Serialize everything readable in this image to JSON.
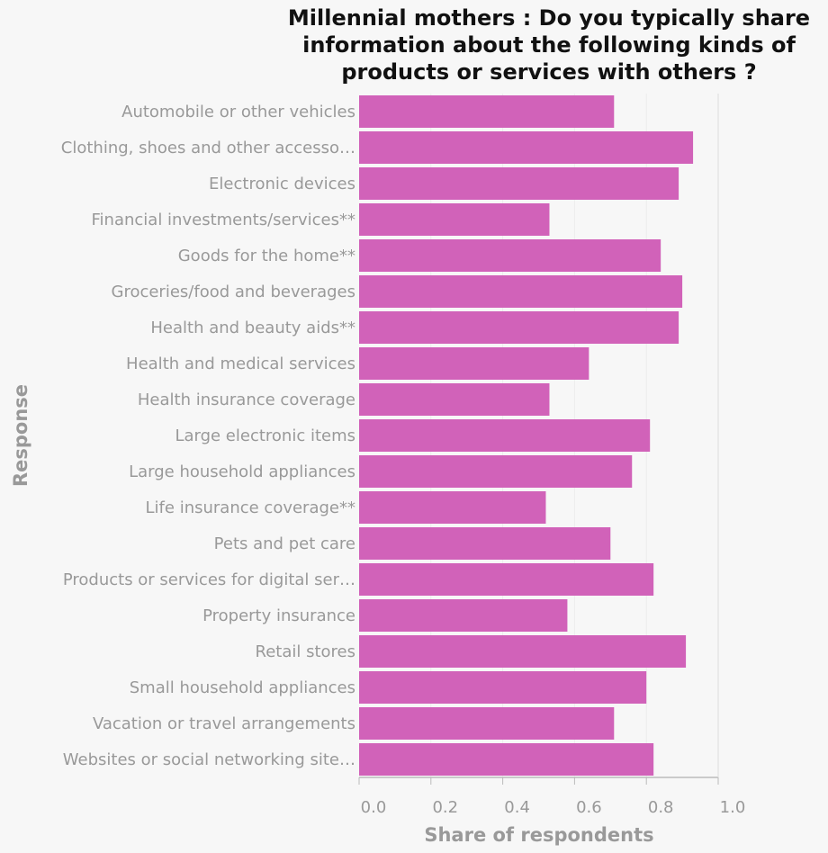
{
  "chart_data": {
    "type": "bar",
    "orientation": "horizontal",
    "title": "Millennial mothers : Do you typically share information about the following kinds of products or services with others ?",
    "title_lines": [
      "Millennial mothers : Do you typically share",
      "information about the following kinds of",
      "products or services with others ?"
    ],
    "xlabel": "Share of respondents",
    "ylabel": "Response",
    "xlim": [
      0,
      1
    ],
    "xticks": [
      "0.0",
      "0.2",
      "0.4",
      "0.6",
      "0.8",
      "1.0"
    ],
    "xtick_values": [
      0,
      0.2,
      0.4,
      0.6,
      0.8,
      1.0
    ],
    "grid": true,
    "bar_color": "#d162b9",
    "categories": [
      "Automobile or other vehicles",
      "Clothing, shoes and other accesso…",
      "Electronic devices",
      "Financial investments/services**",
      "Goods for the home**",
      "Groceries/food and beverages",
      "Health and beauty aids**",
      "Health and medical services",
      "Health insurance coverage",
      "Large electronic items",
      "Large household appliances",
      "Life insurance coverage**",
      "Pets and pet care",
      "Products or services for digital ser…",
      "Property insurance",
      "Retail stores",
      "Small household appliances",
      "Vacation or travel arrangements",
      "Websites or social networking site…"
    ],
    "values": [
      0.71,
      0.93,
      0.89,
      0.53,
      0.84,
      0.9,
      0.89,
      0.64,
      0.53,
      0.81,
      0.76,
      0.52,
      0.7,
      0.82,
      0.58,
      0.91,
      0.8,
      0.71,
      0.82
    ]
  }
}
